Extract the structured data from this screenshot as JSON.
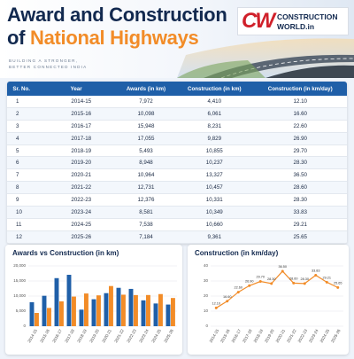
{
  "header": {
    "title_line1": "Award and Construction",
    "title_line2_prefix": "of",
    "title_line2_highlight": "National Highways",
    "tagline_1": "BUILDING A STRONGER,",
    "tagline_2": "BETTER CONNECTED INDIA"
  },
  "logo": {
    "mark": "CW",
    "line1": "CONSTRUCTION",
    "line2": "WORLD.in"
  },
  "table": {
    "columns": [
      "Sr. No.",
      "Year",
      "Awards (in km)",
      "Construction (in km)",
      "Construction (in km/day)"
    ],
    "rows": [
      [
        "1",
        "2014-15",
        "7,972",
        "4,410",
        "12.10"
      ],
      [
        "2",
        "2015-16",
        "10,098",
        "6,061",
        "16.60"
      ],
      [
        "3",
        "2016-17",
        "15,948",
        "8,231",
        "22.60"
      ],
      [
        "4",
        "2017-18",
        "17,055",
        "9,829",
        "26.90"
      ],
      [
        "5",
        "2018-19",
        "5,493",
        "10,855",
        "29.70"
      ],
      [
        "6",
        "2019-20",
        "8,948",
        "10,237",
        "28.30"
      ],
      [
        "7",
        "2020-21",
        "10,964",
        "13,327",
        "36.50"
      ],
      [
        "8",
        "2021-22",
        "12,731",
        "10,457",
        "28.60"
      ],
      [
        "9",
        "2022-23",
        "12,376",
        "10,331",
        "28.30"
      ],
      [
        "10",
        "2023-24",
        "8,581",
        "10,349",
        "33.83"
      ],
      [
        "11",
        "2024-25",
        "7,538",
        "10,660",
        "29.21"
      ],
      [
        "12",
        "2025-26",
        "7,184",
        "9,361",
        "25.65"
      ]
    ]
  },
  "chart_data": [
    {
      "type": "bar",
      "title": "Awards vs Construction (in km)",
      "categories": [
        "2014-15",
        "2015-16",
        "2016-17",
        "2017-18",
        "2018-19",
        "2019-20",
        "2020-21",
        "2021-22",
        "2022-23",
        "2023-24",
        "2024-25",
        "2025-26"
      ],
      "series": [
        {
          "color": "#1f5fa8",
          "values": [
            7972,
            10098,
            15948,
            17055,
            5493,
            8948,
            10964,
            12731,
            12376,
            8581,
            7538,
            7184
          ]
        },
        {
          "color": "#f28c28",
          "values": [
            4410,
            6061,
            8231,
            9829,
            10855,
            10237,
            13327,
            10457,
            10331,
            10349,
            10660,
            9361
          ]
        }
      ],
      "ylim": [
        0,
        20000
      ],
      "yticks": [
        0,
        {
          "value": 5000,
          "label": "5,000"
        },
        {
          "value": 10000,
          "label": "10,000"
        },
        {
          "value": 15000,
          "label": "15,000"
        },
        {
          "value": 20000,
          "label": "20,000"
        }
      ],
      "grid": true
    },
    {
      "type": "line",
      "title": "Construction (in km/day)",
      "categories": [
        "2014-15",
        "2015-16",
        "2016-17",
        "2017-18",
        "2018-19",
        "2019-20",
        "2020-21",
        "2021-22",
        "2022-23",
        "2023-24",
        "2024-25",
        "2025-26"
      ],
      "series": [
        {
          "color": "#f28c28",
          "values": [
            12.1,
            16.6,
            22.6,
            26.9,
            29.7,
            28.3,
            36.5,
            28.6,
            28.3,
            33.83,
            29.21,
            25.65
          ],
          "value_labels": [
            "12.10",
            "16.60",
            "22.60",
            "26.90",
            "29.70",
            "28.30",
            "36.50",
            "28.60",
            "28.30",
            "33.83",
            "29.21",
            "25.65"
          ]
        }
      ],
      "ylim": [
        0,
        40
      ],
      "yticks": [
        0,
        10,
        20,
        30,
        40
      ],
      "grid": true
    }
  ]
}
